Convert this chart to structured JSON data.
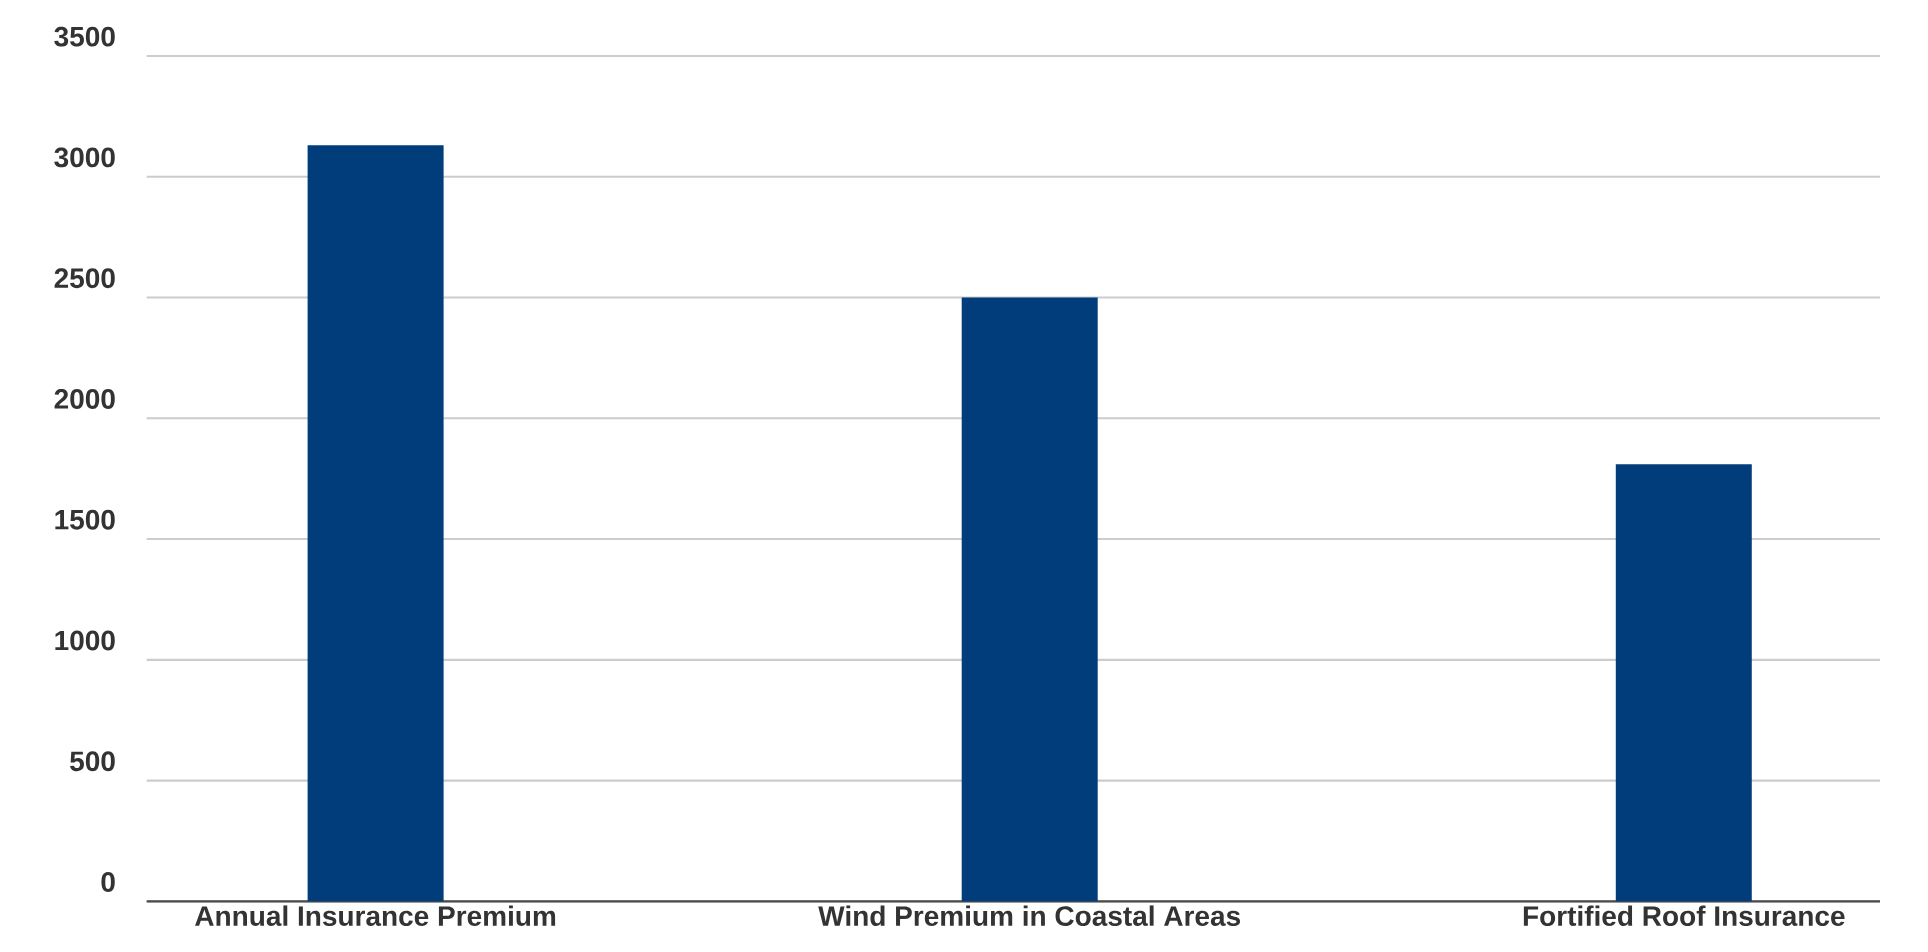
{
  "chart_data": {
    "type": "bar",
    "categories": [
      "Annual Insurance Premium",
      "Wind Premium in Coastal Areas",
      "Fortified Roof Insurance"
    ],
    "values": [
      3130,
      2500,
      1810
    ],
    "color": "#023d7b",
    "ylim": [
      0,
      3500
    ],
    "yticks": [
      0,
      500,
      1000,
      1500,
      2000,
      2500,
      3000,
      3500
    ],
    "grid": "y"
  }
}
